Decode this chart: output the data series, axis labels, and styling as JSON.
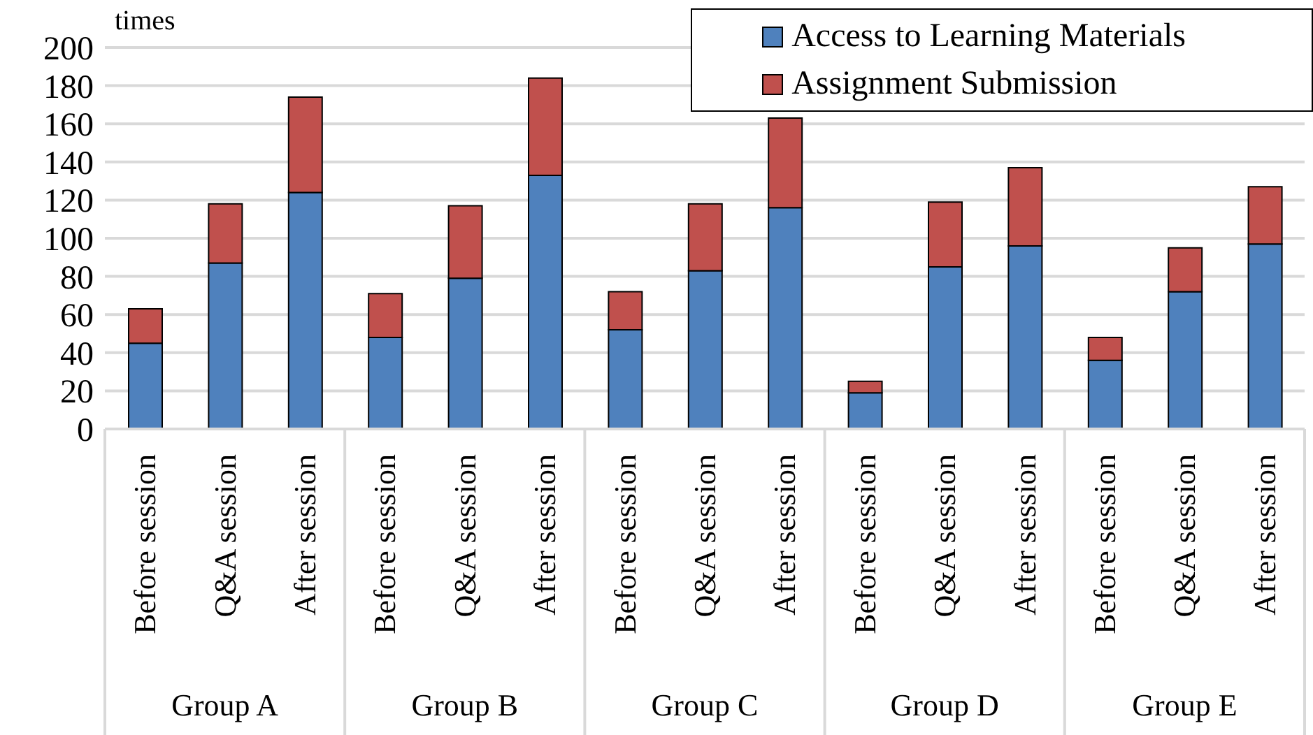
{
  "chart_data": {
    "type": "bar",
    "stacked": true,
    "ylabel": "times",
    "categories": [
      "Before session",
      "Q&A session",
      "After session",
      "Before session",
      "Q&A session",
      "After session",
      "Before session",
      "Q&A session",
      "After session",
      "Before session",
      "Q&A session",
      "After session",
      "Before session",
      "Q&A session",
      "After session"
    ],
    "series": [
      {
        "name": "Access to Learning Materials",
        "color": "#4f81bd",
        "values": [
          45,
          87,
          124,
          48,
          79,
          133,
          52,
          83,
          116,
          19,
          85,
          96,
          36,
          72,
          97
        ]
      },
      {
        "name": "Assignment Submission",
        "color": "#c0504d",
        "values": [
          18,
          31,
          50,
          23,
          38,
          51,
          20,
          35,
          47,
          6,
          34,
          41,
          12,
          23,
          30
        ]
      }
    ],
    "ylim": [
      0,
      200
    ],
    "yticks": [
      0,
      20,
      40,
      60,
      80,
      100,
      120,
      140,
      160,
      180,
      200
    ],
    "grid": "y",
    "legend": "top right",
    "annotations": [
      "Group A",
      "Group B",
      "Group C",
      "Group D",
      "Group E"
    ]
  }
}
